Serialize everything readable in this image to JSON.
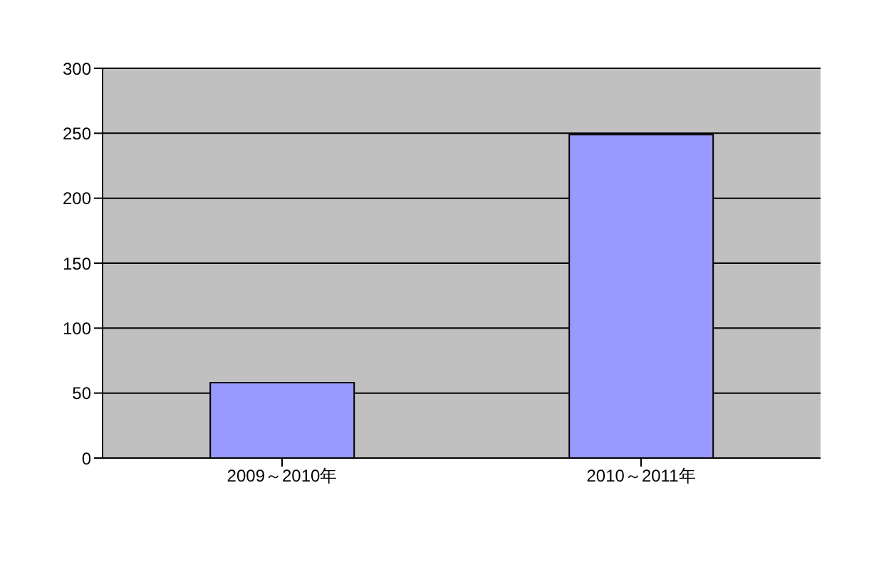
{
  "chart_data": {
    "type": "bar",
    "categories": [
      "2009～2010年",
      "2010～2011年"
    ],
    "values": [
      58,
      249
    ],
    "color": "#9999ff",
    "ylim": [
      0,
      300
    ],
    "yticks": [
      0,
      50,
      100,
      150,
      200,
      250,
      300
    ],
    "grid": "y",
    "legend": false
  }
}
